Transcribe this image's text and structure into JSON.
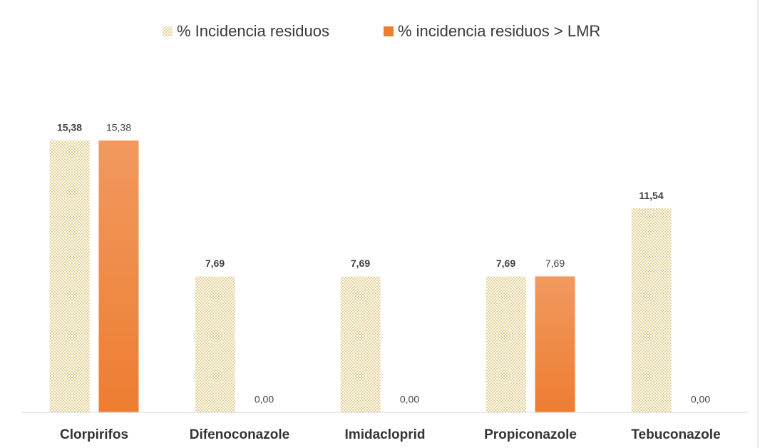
{
  "chart_data": {
    "type": "bar",
    "categories": [
      "Clorpirifos",
      "Difenoconazole",
      "Imidacloprid",
      "Propiconazole",
      "Tebuconazole"
    ],
    "series": [
      {
        "name": "% Incidencia residuos",
        "color": "#c9a640",
        "pattern": "dots",
        "values": [
          15.38,
          7.69,
          7.69,
          7.69,
          11.54
        ],
        "value_labels": [
          "15,38",
          "7,69",
          "7,69",
          "7,69",
          "11,54"
        ]
      },
      {
        "name": "% incidencia residuos > LMR",
        "color": "#ed7d31",
        "values": [
          15.38,
          0,
          0,
          7.69,
          0
        ],
        "value_labels": [
          "15,38",
          "0,00",
          "0,00",
          "7,69",
          "0,00"
        ]
      }
    ],
    "ylim": [
      0,
      18
    ],
    "legend": "top"
  }
}
